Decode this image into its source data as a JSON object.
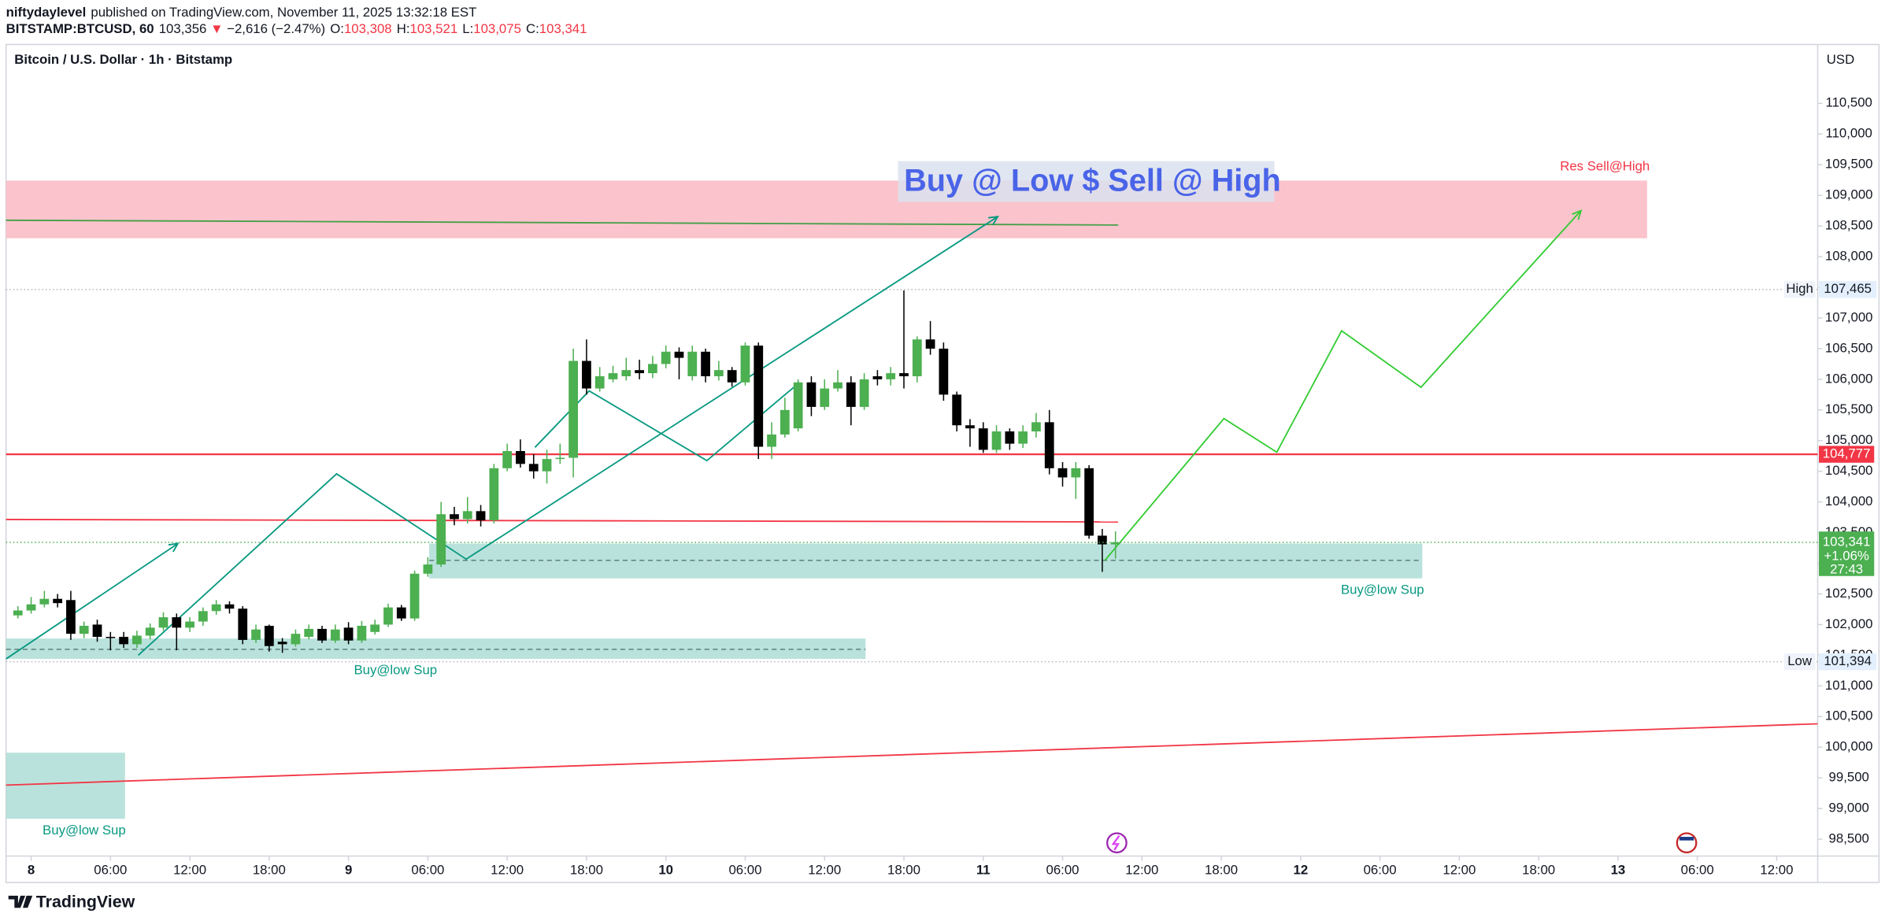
{
  "header": {
    "author": "niftydaylevel",
    "published": "published on TradingView.com, November 11, 2025 13:32:18 EST",
    "symbol": "BITSTAMP:BTCUSD, 60",
    "price": "103,356",
    "arrow": "▼",
    "change": "−2,616 (−2.47%)",
    "ohlc": [
      {
        "label": "O:",
        "value": "103,308"
      },
      {
        "label": "H:",
        "value": "103,521"
      },
      {
        "label": "L:",
        "value": "103,075"
      },
      {
        "label": "C:",
        "value": "103,341"
      }
    ]
  },
  "footer": {
    "brand": "TradingView"
  },
  "chart_data": {
    "type": "candlestick",
    "title": "Bitcoin / U.S. Dollar · 1h · Bitstamp",
    "currency": "USD",
    "up_color": "#4caf50",
    "down_color": "#000000",
    "xlim": [
      -1.9,
      135.1
    ],
    "ylim": [
      98225,
      111460
    ],
    "xticks": [
      {
        "value": 0,
        "label": "8"
      },
      {
        "value": 6,
        "label": "06:00"
      },
      {
        "value": 12,
        "label": "12:00"
      },
      {
        "value": 18,
        "label": "18:00"
      },
      {
        "value": 24,
        "label": "9"
      },
      {
        "value": 30,
        "label": "06:00"
      },
      {
        "value": 36,
        "label": "12:00"
      },
      {
        "value": 42,
        "label": "18:00"
      },
      {
        "value": 48,
        "label": "10"
      },
      {
        "value": 54,
        "label": "06:00"
      },
      {
        "value": 60,
        "label": "12:00"
      },
      {
        "value": 66,
        "label": "18:00"
      },
      {
        "value": 72,
        "label": "11"
      },
      {
        "value": 78,
        "label": "06:00"
      },
      {
        "value": 84,
        "label": "12:00"
      },
      {
        "value": 90,
        "label": "18:00"
      },
      {
        "value": 96,
        "label": "12"
      },
      {
        "value": 102,
        "label": "06:00"
      },
      {
        "value": 108,
        "label": "12:00"
      },
      {
        "value": 114,
        "label": "18:00"
      },
      {
        "value": 120,
        "label": "13"
      },
      {
        "value": 126,
        "label": "06:00"
      },
      {
        "value": 132,
        "label": "12:00"
      }
    ],
    "yticks": [
      {
        "value": 98500,
        "label": "98,500"
      },
      {
        "value": 99000,
        "label": "99,000"
      },
      {
        "value": 99500,
        "label": "99,500"
      },
      {
        "value": 100000,
        "label": "100,000"
      },
      {
        "value": 100500,
        "label": "100,500"
      },
      {
        "value": 101000,
        "label": "101,000"
      },
      {
        "value": 101500,
        "label": "101,500"
      },
      {
        "value": 102000,
        "label": "102,000"
      },
      {
        "value": 102500,
        "label": "102,500"
      },
      {
        "value": 103000,
        "label": "103,000"
      },
      {
        "value": 103500,
        "label": "103,500"
      },
      {
        "value": 104000,
        "label": "104,000"
      },
      {
        "value": 104500,
        "label": "104,500"
      },
      {
        "value": 105000,
        "label": "105,000"
      },
      {
        "value": 105500,
        "label": "105,500"
      },
      {
        "value": 106000,
        "label": "106,000"
      },
      {
        "value": 106500,
        "label": "106,500"
      },
      {
        "value": 107000,
        "label": "107,000"
      },
      {
        "value": 107500,
        "label": "107,500"
      },
      {
        "value": 108000,
        "label": "108,000"
      },
      {
        "value": 108500,
        "label": "108,500"
      },
      {
        "value": 109000,
        "label": "109,000"
      },
      {
        "value": 109500,
        "label": "109,500"
      },
      {
        "value": 110000,
        "label": "110,000"
      },
      {
        "value": 110500,
        "label": "110,500"
      }
    ],
    "candles": {
      "x": [
        -1,
        0,
        1,
        2,
        3,
        4,
        5,
        6,
        7,
        8,
        9,
        10,
        11,
        12,
        13,
        14,
        15,
        16,
        17,
        18,
        19,
        20,
        21,
        22,
        23,
        24,
        25,
        26,
        27,
        28,
        29,
        30,
        31,
        32,
        33,
        34,
        35,
        36,
        37,
        38,
        39,
        40,
        41,
        42,
        43,
        44,
        45,
        46,
        47,
        48,
        49,
        50,
        51,
        52,
        53,
        54,
        55,
        56,
        57,
        58,
        59,
        60,
        61,
        62,
        63,
        64,
        65,
        66,
        67,
        68,
        69,
        70,
        71,
        72,
        73,
        74,
        75,
        76,
        77,
        78,
        79,
        80,
        81,
        82
      ],
      "open": [
        102150,
        102230,
        102330,
        102420,
        102400,
        101850,
        102000,
        101800,
        101800,
        101680,
        101820,
        101950,
        102120,
        101950,
        102050,
        102220,
        102330,
        102260,
        101750,
        101980,
        101720,
        101680,
        101800,
        101930,
        101740,
        101950,
        101740,
        101880,
        102000,
        102280,
        102100,
        102830,
        102980,
        103800,
        103720,
        103850,
        103700,
        104550,
        104830,
        104620,
        104500,
        104700,
        104720,
        106300,
        105850,
        106000,
        106050,
        106150,
        106100,
        106250,
        106450,
        106050,
        106450,
        106050,
        106150,
        105950,
        106550,
        104900,
        105100,
        105200,
        105950,
        105550,
        105850,
        105950,
        105550,
        106050,
        106000,
        106100,
        106050,
        106650,
        106500,
        105750,
        105250,
        105200,
        104850,
        105150,
        104950,
        105150,
        105300,
        104550,
        104400,
        104550,
        103450,
        103308
      ],
      "high": [
        102300,
        102450,
        102550,
        102500,
        102550,
        102050,
        102080,
        101880,
        101880,
        101900,
        102020,
        102200,
        102180,
        102120,
        102280,
        102400,
        102380,
        102300,
        102000,
        102000,
        101780,
        101920,
        102000,
        101980,
        102000,
        102040,
        102060,
        102080,
        102340,
        102320,
        102880,
        103100,
        104000,
        103920,
        104080,
        103950,
        104620,
        104950,
        105020,
        104780,
        104850,
        104950,
        106500,
        106650,
        106200,
        106220,
        106350,
        106320,
        106380,
        106550,
        106520,
        106550,
        106500,
        106300,
        106200,
        106600,
        106600,
        105300,
        105700,
        106000,
        106050,
        106000,
        106150,
        106050,
        106100,
        106150,
        106200,
        107450,
        106700,
        106950,
        106600,
        105800,
        105350,
        105300,
        105250,
        105200,
        105250,
        105450,
        105500,
        104650,
        104650,
        104600,
        103560,
        103521
      ],
      "low": [
        102100,
        102180,
        102280,
        102280,
        101750,
        101780,
        101720,
        101580,
        101620,
        101620,
        101760,
        101900,
        101580,
        101880,
        101980,
        102160,
        102180,
        101680,
        101700,
        101560,
        101540,
        101640,
        101760,
        101700,
        101700,
        101680,
        101700,
        101840,
        101960,
        102060,
        102060,
        102780,
        102940,
        103620,
        103650,
        103600,
        103650,
        104500,
        104560,
        104380,
        104300,
        104620,
        104400,
        105750,
        105800,
        105950,
        105980,
        106000,
        106020,
        106180,
        106000,
        105980,
        105950,
        105980,
        105880,
        105900,
        104700,
        104700,
        105050,
        105150,
        105400,
        105500,
        105800,
        105250,
        105500,
        105900,
        105900,
        105850,
        105950,
        106400,
        105650,
        105150,
        104900,
        104800,
        104800,
        104850,
        104880,
        105050,
        104450,
        104250,
        104050,
        103400,
        102860,
        103075
      ],
      "close": [
        102230,
        102330,
        102420,
        102350,
        101850,
        101980,
        101800,
        101780,
        101680,
        101820,
        101950,
        102120,
        101950,
        102050,
        102220,
        102330,
        102260,
        101750,
        101920,
        101650,
        101680,
        101850,
        101930,
        101740,
        101920,
        101740,
        101980,
        102000,
        102280,
        102100,
        102830,
        102980,
        103800,
        103720,
        103850,
        103700,
        104550,
        104830,
        104620,
        104500,
        104700,
        104720,
        106300,
        105850,
        106050,
        106100,
        106150,
        106100,
        106250,
        106450,
        106350,
        106450,
        106050,
        106150,
        105950,
        106550,
        104900,
        105100,
        105500,
        105950,
        105550,
        105850,
        105950,
        105550,
        106000,
        106000,
        106100,
        106050,
        106650,
        106500,
        105750,
        105250,
        105200,
        104850,
        105150,
        104950,
        105150,
        105300,
        104550,
        104400,
        104550,
        103450,
        103308,
        103341
      ]
    },
    "levels": [
      {
        "name": "High",
        "value": 107465,
        "value_label": "107,465"
      },
      {
        "name": "Low",
        "value": 101394,
        "value_label": "101,394"
      }
    ],
    "price_line": {
      "value": 104777,
      "value_label": "104,777",
      "color": "#f23645"
    },
    "last_price": {
      "value": 103341,
      "value_label": "103,341",
      "change": "+1.06%",
      "countdown": "27:43",
      "color": "#4caf50"
    },
    "zones": [
      {
        "color": "#fbbdc6",
        "x": [
          -1.9,
          122.2
        ],
        "y": [
          108300,
          109241
        ]
      },
      {
        "color": "#b2dfd8",
        "x": [
          30.1,
          105.2
        ],
        "y": [
          102753,
          103322
        ],
        "mid": 103047
      },
      {
        "color": "#b2dfd8",
        "x": [
          -1.9,
          63.1
        ],
        "y": [
          101440,
          101773
        ],
        "mid": 101597
      },
      {
        "color": "#b2dfd8",
        "x": [
          -1.9,
          7.1
        ],
        "y": [
          98833,
          99911
        ]
      }
    ],
    "lines": [
      {
        "color": "#43a047",
        "x": [
          -1.9,
          82.2
        ],
        "y": [
          108594,
          108516
        ]
      },
      {
        "color": "#f23645",
        "x": [
          -1.9,
          82.2
        ],
        "y": [
          103714,
          103674
        ]
      },
      {
        "color": "#f23645",
        "x": [
          -1.9,
          135.1
        ],
        "y": [
          99382,
          100382
        ]
      },
      {
        "color": "#089981",
        "x": [
          -1.9,
          11.1
        ],
        "y": [
          101440,
          103322
        ],
        "arrow": true
      },
      {
        "color": "#089981",
        "x": [
          8.1,
          23.1,
          32.9,
          73.1
        ],
        "y": [
          101499,
          104458,
          103067,
          108653
        ],
        "arrow": true
      },
      {
        "color": "#089981",
        "x": [
          38.1,
          42.2,
          51.1,
          58.1
        ],
        "y": [
          104890,
          105811,
          104674,
          105948
        ]
      },
      {
        "color": "#33cc33",
        "x": [
          81.2,
          90.2,
          94.2,
          99.1,
          105.1,
          117.2
        ],
        "y": [
          103047,
          105360,
          104811,
          106791,
          105870,
          108751
        ],
        "arrow": true
      }
    ],
    "annotations": {
      "headline": "Buy @ Low $ Sell @ High",
      "resistance": "Res Sell@High",
      "supports": [
        "Buy@low Sup",
        "Buy@low Sup",
        "Buy@low Sup"
      ]
    }
  }
}
